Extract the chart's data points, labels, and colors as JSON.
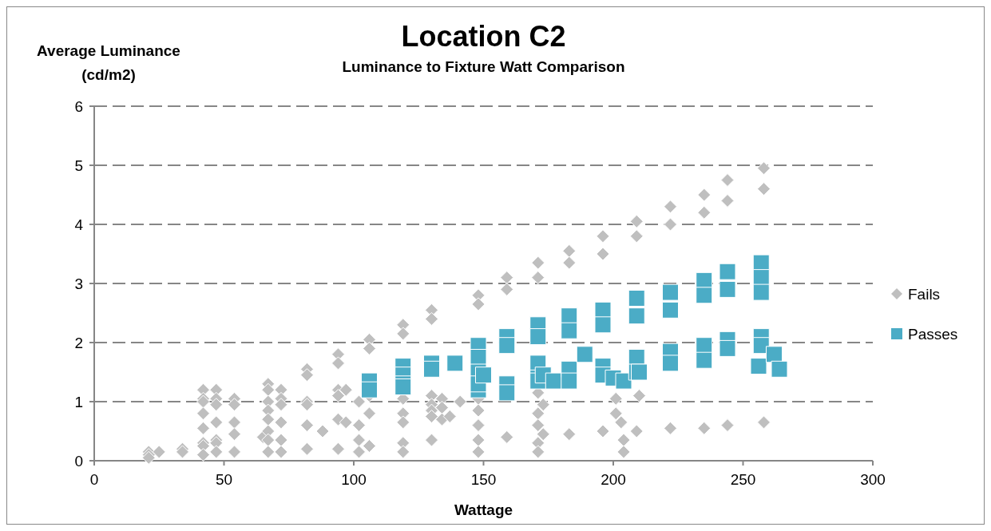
{
  "chart_data": {
    "type": "scatter",
    "title": "Location C2",
    "subtitle": "Luminance to Fixture Watt Comparison",
    "xlabel": "Wattage",
    "ylabel": "Average Luminance (cd/m2)",
    "xlim": [
      0,
      300
    ],
    "xticks": [
      0,
      50,
      100,
      150,
      200,
      250,
      300
    ],
    "ylim": [
      0,
      6
    ],
    "yticks": [
      0,
      1,
      2,
      3,
      4,
      5,
      6
    ],
    "grid": "y",
    "legend": "right",
    "series": [
      {
        "name": "Fails",
        "color": "#bfbfbf",
        "marker": "diamond",
        "x": [
          21,
          21,
          21,
          25,
          34,
          34,
          42,
          42,
          42,
          42,
          42,
          42,
          42,
          42,
          47,
          47,
          47,
          47,
          47,
          47,
          47,
          54,
          54,
          54,
          54,
          54,
          65,
          67,
          67,
          67,
          67,
          67,
          67,
          67,
          67,
          72,
          72,
          72,
          72,
          72,
          72,
          82,
          82,
          82,
          82,
          82,
          82,
          88,
          94,
          94,
          94,
          94,
          94,
          94,
          97,
          97,
          102,
          102,
          102,
          102,
          106,
          106,
          106,
          106,
          106,
          119,
          119,
          119,
          119,
          119,
          119,
          119,
          130,
          130,
          130,
          130,
          130,
          130,
          130,
          134,
          134,
          134,
          137,
          141,
          148,
          148,
          148,
          148,
          148,
          148,
          148,
          159,
          159,
          159,
          171,
          171,
          171,
          171,
          171,
          171,
          171,
          173,
          173,
          183,
          183,
          183,
          196,
          196,
          196,
          201,
          201,
          204,
          204,
          203,
          209,
          209,
          209,
          210,
          222,
          222,
          222,
          235,
          235,
          235,
          244,
          244,
          244,
          258,
          258,
          258
        ],
        "values": [
          0.15,
          0.1,
          0.05,
          0.15,
          0.2,
          0.15,
          1.2,
          1.05,
          1.0,
          0.8,
          0.55,
          0.3,
          0.25,
          0.1,
          1.2,
          1.05,
          0.95,
          0.65,
          0.35,
          0.3,
          0.15,
          1.05,
          0.95,
          0.65,
          0.45,
          0.15,
          0.4,
          1.3,
          1.2,
          1.0,
          0.85,
          0.7,
          0.5,
          0.35,
          0.15,
          1.2,
          1.05,
          0.95,
          0.65,
          0.35,
          0.15,
          1.55,
          1.45,
          1.0,
          0.95,
          0.6,
          0.2,
          0.5,
          1.8,
          1.65,
          1.2,
          1.1,
          0.7,
          0.2,
          1.2,
          0.65,
          1.0,
          0.6,
          0.35,
          0.15,
          2.05,
          1.9,
          1.1,
          0.8,
          0.25,
          2.3,
          2.15,
          1.05,
          0.8,
          0.65,
          0.3,
          0.15,
          2.55,
          2.4,
          1.1,
          0.95,
          0.85,
          0.75,
          0.35,
          1.05,
          0.9,
          0.7,
          0.75,
          1.0,
          2.8,
          2.65,
          1.05,
          0.85,
          0.6,
          0.35,
          0.15,
          3.1,
          2.9,
          0.4,
          3.35,
          3.1,
          1.15,
          0.8,
          0.6,
          0.3,
          0.15,
          0.95,
          0.45,
          3.55,
          3.35,
          0.45,
          3.8,
          3.5,
          0.5,
          1.05,
          0.8,
          0.35,
          0.15,
          0.65,
          4.05,
          3.8,
          0.5,
          1.1,
          4.3,
          4.0,
          0.55,
          4.5,
          4.2,
          0.55,
          4.75,
          4.4,
          0.6,
          4.95,
          4.6,
          0.65
        ]
      },
      {
        "name": "Passes",
        "color": "#4bacc6",
        "marker": "square",
        "x": [
          106,
          106,
          119,
          119,
          119,
          119,
          130,
          130,
          139,
          148,
          148,
          148,
          148,
          148,
          150,
          159,
          159,
          159,
          159,
          171,
          171,
          171,
          171,
          171,
          173,
          177,
          183,
          183,
          183,
          183,
          189,
          196,
          196,
          196,
          196,
          200,
          204,
          209,
          209,
          209,
          209,
          210,
          222,
          222,
          222,
          222,
          235,
          235,
          235,
          235,
          244,
          244,
          244,
          244,
          257,
          257,
          257,
          257,
          257,
          256,
          262,
          264
        ],
        "values": [
          1.35,
          1.2,
          1.6,
          1.45,
          1.3,
          1.25,
          1.65,
          1.55,
          1.65,
          1.95,
          1.75,
          1.5,
          1.2,
          1.3,
          1.45,
          2.1,
          1.95,
          1.3,
          1.15,
          2.3,
          2.1,
          1.65,
          1.4,
          1.35,
          1.45,
          1.35,
          2.45,
          2.2,
          1.55,
          1.35,
          1.8,
          2.55,
          2.3,
          1.6,
          1.45,
          1.4,
          1.35,
          2.75,
          2.45,
          1.75,
          1.5,
          1.5,
          2.85,
          2.55,
          1.85,
          1.65,
          3.05,
          2.8,
          1.95,
          1.7,
          3.2,
          2.9,
          2.05,
          1.9,
          3.35,
          3.1,
          2.85,
          2.1,
          1.95,
          1.6,
          1.8,
          1.55
        ]
      }
    ]
  }
}
